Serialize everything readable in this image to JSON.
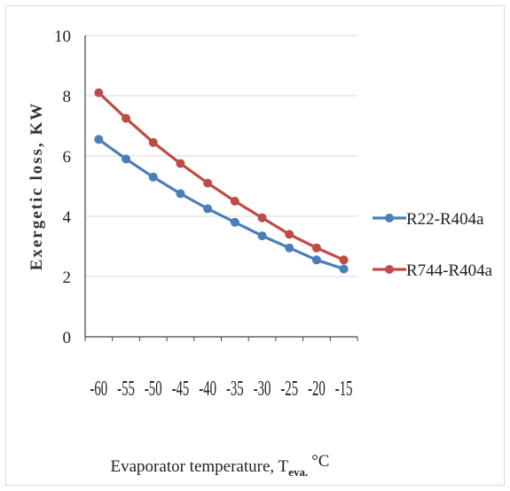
{
  "chart_data": {
    "type": "line",
    "title": "",
    "xlabel": "Evaporator temperature, T",
    "xlabel_subscript": "eva.",
    "xlabel_unit": "°C",
    "ylabel": "Exergetic loss, KW",
    "ylim": [
      0,
      10
    ],
    "yticks": [
      0,
      2,
      4,
      6,
      8,
      10
    ],
    "x": [
      -60,
      -55,
      -50,
      -45,
      -40,
      -35,
      -30,
      -25,
      -20,
      -15
    ],
    "x_tick_labels": [
      "-60",
      "-55",
      "-50",
      "-45",
      "-40",
      "-35",
      "-30",
      "-25",
      "-20",
      "-15"
    ],
    "grid": "horizontal",
    "legend_position": "right",
    "series": [
      {
        "name": "R22-R404a",
        "color": "#4a7ebb",
        "values": [
          6.55,
          5.9,
          5.3,
          4.75,
          4.25,
          3.8,
          3.35,
          2.95,
          2.55,
          2.25
        ]
      },
      {
        "name": "R744-R404a",
        "color": "#be4b48",
        "values": [
          8.1,
          7.25,
          6.45,
          5.75,
          5.1,
          4.5,
          3.95,
          3.4,
          2.95,
          2.55
        ]
      }
    ]
  }
}
